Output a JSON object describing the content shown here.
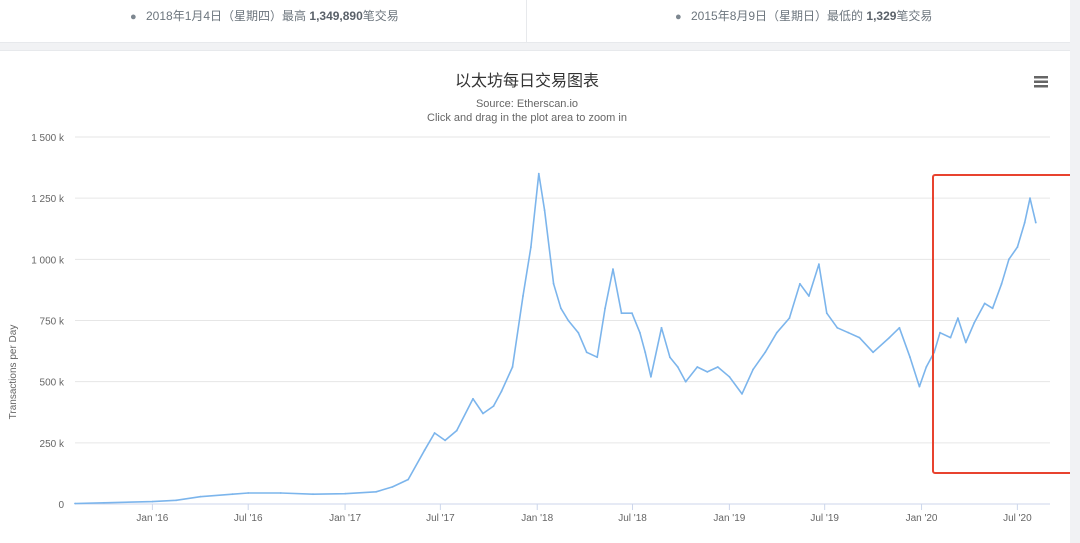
{
  "stats": {
    "high": {
      "date_text": "2018年1月4日（星期四）最高",
      "value": "1,349,890",
      "suffix": "笔交易"
    },
    "low": {
      "date_text": "2015年8月9日（星期日）最低的",
      "value": "1,329",
      "suffix": "笔交易"
    }
  },
  "chart_data": {
    "type": "line",
    "title": "以太坊每日交易图表",
    "subtitle": "Source: Etherscan.io",
    "subtitle2": "Click and drag in the plot area to zoom in",
    "xlabel": "",
    "ylabel": "Transactions per Day",
    "ylim": [
      0,
      1500000
    ],
    "y_ticks": [
      0,
      250000,
      500000,
      750000,
      1000000,
      1250000,
      1500000
    ],
    "y_tick_labels": [
      "0",
      "250 k",
      "500 k",
      "750 k",
      "1 000 k",
      "1 250 k",
      "1 500 k"
    ],
    "x_range": [
      "2015-08-07",
      "2020-09-01"
    ],
    "x_ticks": [
      "2016-01-01",
      "2016-07-01",
      "2017-01-01",
      "2017-07-01",
      "2018-01-01",
      "2018-07-01",
      "2019-01-01",
      "2019-07-01",
      "2020-01-01",
      "2020-07-01"
    ],
    "x_tick_labels": [
      "Jan '16",
      "Jul '16",
      "Jan '17",
      "Jul '17",
      "Jan '18",
      "Jul '18",
      "Jan '19",
      "Jul '19",
      "Jan '20",
      "Jul '20"
    ],
    "series": [
      {
        "color": "#7cb5ec",
        "points": [
          [
            "2015-08-07",
            2000
          ],
          [
            "2015-10-01",
            5000
          ],
          [
            "2016-01-01",
            10000
          ],
          [
            "2016-02-15",
            15000
          ],
          [
            "2016-04-01",
            30000
          ],
          [
            "2016-06-01",
            40000
          ],
          [
            "2016-07-01",
            45000
          ],
          [
            "2016-09-01",
            45000
          ],
          [
            "2016-11-01",
            40000
          ],
          [
            "2017-01-01",
            42000
          ],
          [
            "2017-03-01",
            50000
          ],
          [
            "2017-04-01",
            70000
          ],
          [
            "2017-05-01",
            100000
          ],
          [
            "2017-06-01",
            220000
          ],
          [
            "2017-06-20",
            290000
          ],
          [
            "2017-07-10",
            260000
          ],
          [
            "2017-08-01",
            300000
          ],
          [
            "2017-09-01",
            430000
          ],
          [
            "2017-09-20",
            370000
          ],
          [
            "2017-10-10",
            400000
          ],
          [
            "2017-10-25",
            460000
          ],
          [
            "2017-11-15",
            560000
          ],
          [
            "2017-12-05",
            850000
          ],
          [
            "2017-12-20",
            1050000
          ],
          [
            "2018-01-04",
            1349890
          ],
          [
            "2018-01-15",
            1200000
          ],
          [
            "2018-02-01",
            900000
          ],
          [
            "2018-02-15",
            800000
          ],
          [
            "2018-03-01",
            750000
          ],
          [
            "2018-03-20",
            700000
          ],
          [
            "2018-04-05",
            620000
          ],
          [
            "2018-04-25",
            600000
          ],
          [
            "2018-05-10",
            800000
          ],
          [
            "2018-05-25",
            960000
          ],
          [
            "2018-06-10",
            780000
          ],
          [
            "2018-06-30",
            780000
          ],
          [
            "2018-07-15",
            700000
          ],
          [
            "2018-07-25",
            620000
          ],
          [
            "2018-08-05",
            520000
          ],
          [
            "2018-08-25",
            720000
          ],
          [
            "2018-09-10",
            600000
          ],
          [
            "2018-09-25",
            560000
          ],
          [
            "2018-10-10",
            500000
          ],
          [
            "2018-11-01",
            560000
          ],
          [
            "2018-11-20",
            540000
          ],
          [
            "2018-12-10",
            560000
          ],
          [
            "2019-01-01",
            520000
          ],
          [
            "2019-01-25",
            450000
          ],
          [
            "2019-02-15",
            550000
          ],
          [
            "2019-03-10",
            620000
          ],
          [
            "2019-04-01",
            700000
          ],
          [
            "2019-04-25",
            760000
          ],
          [
            "2019-05-15",
            900000
          ],
          [
            "2019-06-01",
            850000
          ],
          [
            "2019-06-20",
            980000
          ],
          [
            "2019-07-05",
            780000
          ],
          [
            "2019-07-25",
            720000
          ],
          [
            "2019-08-15",
            700000
          ],
          [
            "2019-09-05",
            680000
          ],
          [
            "2019-10-01",
            620000
          ],
          [
            "2019-11-01",
            680000
          ],
          [
            "2019-11-20",
            720000
          ],
          [
            "2019-12-10",
            600000
          ],
          [
            "2019-12-28",
            480000
          ],
          [
            "2020-01-10",
            560000
          ],
          [
            "2020-01-25",
            620000
          ],
          [
            "2020-02-05",
            700000
          ],
          [
            "2020-02-25",
            680000
          ],
          [
            "2020-03-10",
            760000
          ],
          [
            "2020-03-25",
            660000
          ],
          [
            "2020-04-10",
            740000
          ],
          [
            "2020-04-30",
            820000
          ],
          [
            "2020-05-15",
            800000
          ],
          [
            "2020-06-01",
            900000
          ],
          [
            "2020-06-15",
            1000000
          ],
          [
            "2020-07-01",
            1050000
          ],
          [
            "2020-07-15",
            1150000
          ],
          [
            "2020-07-25",
            1250000
          ],
          [
            "2020-08-05",
            1150000
          ]
        ]
      }
    ],
    "menu_icon": "hamburger-icon",
    "highlight_color": "#e8432f"
  }
}
